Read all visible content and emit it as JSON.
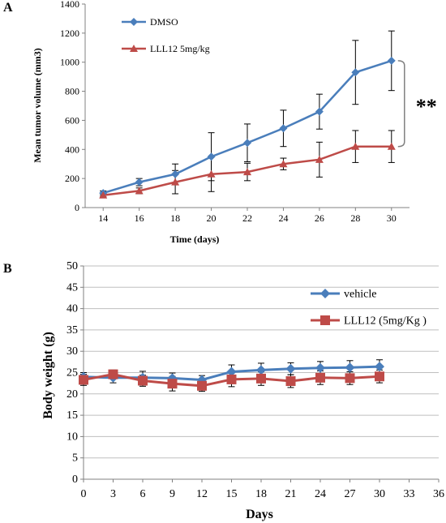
{
  "chart_data": [
    {
      "panel_label": "A",
      "type": "line",
      "xlabel": "Time (days)",
      "ylabel": "Mean tumor volume (mm3)",
      "x": [
        14,
        16,
        18,
        20,
        22,
        24,
        26,
        28,
        30
      ],
      "xlim": [
        13,
        31
      ],
      "ylim": [
        0,
        1400
      ],
      "xticks": [
        "14",
        "16",
        "18",
        "20",
        "22",
        "24",
        "26",
        "28",
        "30"
      ],
      "yticks": [
        "0",
        "200",
        "400",
        "600",
        "800",
        "1000",
        "1200",
        "1400"
      ],
      "legend_position": "top-left",
      "grid": false,
      "series": [
        {
          "name": "DMSO",
          "marker": "diamond",
          "color": "#4a7ebb",
          "values": [
            100,
            175,
            230,
            350,
            445,
            545,
            660,
            930,
            1010
          ],
          "errors": [
            15,
            25,
            70,
            165,
            130,
            125,
            120,
            220,
            205
          ]
        },
        {
          "name": "LLL12  5mg/kg",
          "marker": "triangle",
          "color": "#be4b48",
          "values": [
            85,
            115,
            175,
            230,
            245,
            300,
            330,
            420,
            420
          ],
          "errors": [
            10,
            20,
            80,
            120,
            60,
            40,
            120,
            110,
            110
          ]
        }
      ],
      "annotation": "**"
    },
    {
      "panel_label": "B",
      "type": "line",
      "xlabel": "Days",
      "ylabel": "Body weight (g)",
      "x": [
        0,
        3,
        6,
        9,
        12,
        15,
        18,
        21,
        24,
        27,
        30
      ],
      "xlim": [
        0,
        36
      ],
      "ylim": [
        0,
        50
      ],
      "xticks": [
        "0",
        "3",
        "6",
        "9",
        "12",
        "15",
        "18",
        "21",
        "24",
        "27",
        "30",
        "33",
        "36"
      ],
      "yticks": [
        "0",
        "5",
        "10",
        "15",
        "20",
        "25",
        "30",
        "35",
        "40",
        "45",
        "50"
      ],
      "legend_position": "top-right",
      "grid": true,
      "series": [
        {
          "name": "vehicle",
          "marker": "diamond",
          "color": "#4a7ebb",
          "values": [
            24.0,
            23.8,
            23.8,
            23.7,
            23.3,
            25.2,
            25.6,
            25.9,
            26.1,
            26.2,
            26.4
          ],
          "errors": [
            1.0,
            1.2,
            1.5,
            1.2,
            1.0,
            1.6,
            1.6,
            1.4,
            1.5,
            1.6,
            1.6
          ]
        },
        {
          "name": "LLL12 (5mg/Kg )",
          "marker": "square",
          "color": "#be4b48",
          "values": [
            23.3,
            24.6,
            23.1,
            22.4,
            21.9,
            23.4,
            23.6,
            23.0,
            23.8,
            23.7,
            24.1
          ],
          "errors": [
            1.3,
            1.0,
            1.3,
            1.7,
            1.3,
            1.7,
            1.6,
            1.5,
            1.6,
            1.5,
            1.5
          ]
        }
      ]
    }
  ]
}
